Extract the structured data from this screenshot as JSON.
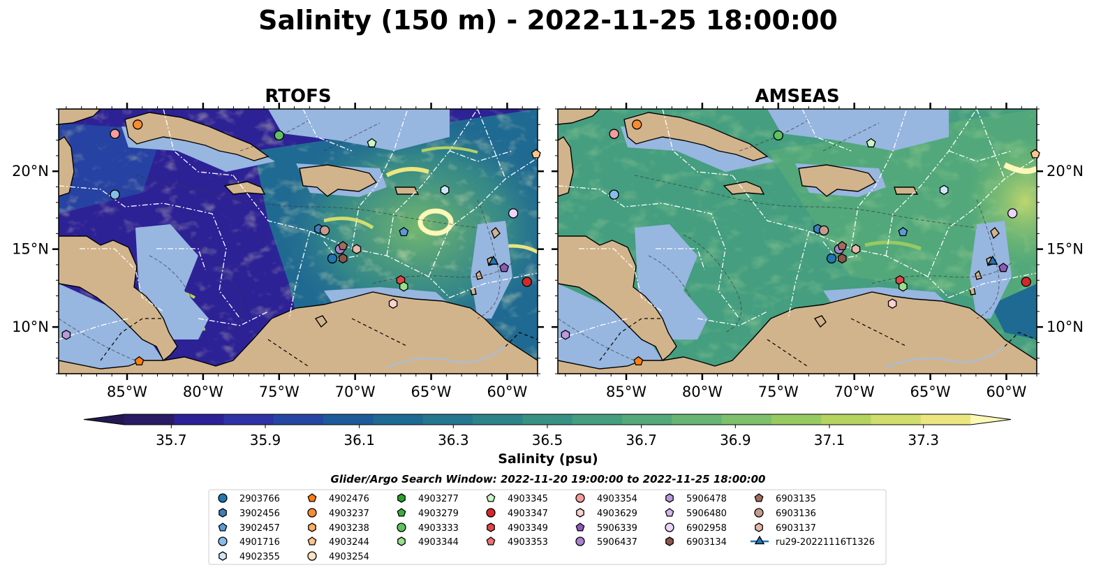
{
  "figure": {
    "title": "Salinity (150 m) - 2022-11-25 18:00:00"
  },
  "panels": [
    {
      "title": "RTOFS",
      "model": "rtofs"
    },
    {
      "title": "AMSEAS",
      "model": "amseas"
    }
  ],
  "axes": {
    "lon_range": [
      -89.5,
      -58.0
    ],
    "lat_range": [
      7.0,
      24.0
    ],
    "lon_ticks": [
      -85,
      -80,
      -75,
      -70,
      -65,
      -60
    ],
    "lon_tick_labels": [
      "85°W",
      "80°W",
      "75°W",
      "70°W",
      "65°W",
      "60°W"
    ],
    "lat_ticks": [
      10,
      15,
      20
    ],
    "lat_tick_labels": [
      "10°N",
      "15°N",
      "20°N"
    ]
  },
  "colorbar": {
    "label": "Salinity (psu)",
    "vmin": 35.6,
    "vmax": 37.4,
    "step": 0.1,
    "ticks": [
      35.7,
      35.9,
      36.1,
      36.3,
      36.5,
      36.7,
      36.9,
      37.1,
      37.3
    ],
    "tick_labels": [
      "35.7",
      "35.9",
      "36.1",
      "36.3",
      "36.5",
      "36.7",
      "36.9",
      "37.1",
      "37.3"
    ],
    "colors": [
      "#2a1b64",
      "#2d2196",
      "#2f33a6",
      "#2646a3",
      "#1d5a9a",
      "#1f6a92",
      "#24778e",
      "#2c8489",
      "#389183",
      "#449e7f",
      "#54a97a",
      "#67b474",
      "#7ec06b",
      "#98ca62",
      "#b4d35f",
      "#d1dd6c",
      "#ebe67f"
    ],
    "extend_under": "#241850",
    "extend_over": "#fdf7b8"
  },
  "map_colors": {
    "land": "#d2b48c",
    "shallow": "#97b6e0",
    "river": "#a3bfe0"
  },
  "legend": {
    "title": "Glider/Argo Search Window: 2022-11-20 19:00:00 to 2022-11-25 18:00:00",
    "columns": [
      [
        {
          "label": "2903766",
          "marker": "circle",
          "color": "#1f77b4"
        },
        {
          "label": "3902456",
          "marker": "hexagon",
          "color": "#3d7fbd"
        },
        {
          "label": "3902457",
          "marker": "pentagon",
          "color": "#5b9bd5"
        },
        {
          "label": "4901716",
          "marker": "circle",
          "color": "#87bde8"
        },
        {
          "label": "4902355",
          "marker": "hexagon",
          "color": "#cfe6f8"
        }
      ],
      [
        {
          "label": "4902476",
          "marker": "pentagon",
          "color": "#ff7f0e"
        },
        {
          "label": "4903237",
          "marker": "circle",
          "color": "#f88c33"
        },
        {
          "label": "4903238",
          "marker": "hexagon",
          "color": "#fcae62"
        },
        {
          "label": "4903244",
          "marker": "pentagon",
          "color": "#fdc58d"
        },
        {
          "label": "4903254",
          "marker": "circle",
          "color": "#fde3c5"
        }
      ],
      [
        {
          "label": "4903277",
          "marker": "hexagon",
          "color": "#2ca02c"
        },
        {
          "label": "4903279",
          "marker": "pentagon",
          "color": "#3dab3d"
        },
        {
          "label": "4903333",
          "marker": "circle",
          "color": "#5fc25f"
        },
        {
          "label": "4903344",
          "marker": "hexagon",
          "color": "#98df8a"
        }
      ],
      [
        {
          "label": "4903345",
          "marker": "pentagon",
          "color": "#ccf5c4"
        },
        {
          "label": "4903347",
          "marker": "circle",
          "color": "#d62728"
        },
        {
          "label": "4903349",
          "marker": "hexagon",
          "color": "#e04848"
        },
        {
          "label": "4903353",
          "marker": "pentagon",
          "color": "#ee7070"
        }
      ],
      [
        {
          "label": "4903354",
          "marker": "circle",
          "color": "#f59b9b"
        },
        {
          "label": "4903629",
          "marker": "hexagon",
          "color": "#fcd0d0"
        },
        {
          "label": "5906339",
          "marker": "pentagon",
          "color": "#8e5ab8"
        },
        {
          "label": "5906437",
          "marker": "circle",
          "color": "#a783cc"
        }
      ],
      [
        {
          "label": "5906478",
          "marker": "hexagon",
          "color": "#bc98dc"
        },
        {
          "label": "5906480",
          "marker": "pentagon",
          "color": "#d2b6ea"
        },
        {
          "label": "6902958",
          "marker": "circle",
          "color": "#ecd5f7"
        },
        {
          "label": "6903134",
          "marker": "hexagon",
          "color": "#8c564b"
        }
      ],
      [
        {
          "label": "6903135",
          "marker": "pentagon",
          "color": "#a16c5f"
        },
        {
          "label": "6903136",
          "marker": "circle",
          "color": "#c49c8e"
        },
        {
          "label": "6903137",
          "marker": "hexagon",
          "color": "#e6b8a8"
        },
        {
          "label": "ru29-20221116T1326",
          "marker": "glider",
          "color": "#1f77b4"
        }
      ]
    ]
  },
  "stations": [
    {
      "label": "4903237",
      "lon": -84.3,
      "lat": 23.0,
      "marker": "circle",
      "color": "#f88c33"
    },
    {
      "label": "4903354",
      "lon": -85.8,
      "lat": 22.4,
      "marker": "circle",
      "color": "#f59b9b"
    },
    {
      "label": "4903333",
      "lon": -75.0,
      "lat": 22.3,
      "marker": "circle",
      "color": "#5fc25f"
    },
    {
      "label": "4903345",
      "lon": -68.9,
      "lat": 21.8,
      "marker": "pentagon",
      "color": "#ccf5c4"
    },
    {
      "label": "4903244",
      "lon": -58.1,
      "lat": 21.1,
      "marker": "pentagon",
      "color": "#fdc58d"
    },
    {
      "label": "4901716",
      "lon": -85.8,
      "lat": 18.5,
      "marker": "circle",
      "color": "#87bde8"
    },
    {
      "label": "4902355",
      "lon": -64.1,
      "lat": 18.8,
      "marker": "hexagon",
      "color": "#cfe6f8"
    },
    {
      "label": "6902958",
      "lon": -59.6,
      "lat": 17.3,
      "marker": "circle",
      "color": "#ecd5f7"
    },
    {
      "label": "3902456",
      "lon": -72.4,
      "lat": 16.3,
      "marker": "hexagon",
      "color": "#3d7fbd"
    },
    {
      "label": "6903136",
      "lon": -72.0,
      "lat": 16.2,
      "marker": "circle",
      "color": "#c49c8e"
    },
    {
      "label": "3902457",
      "lon": -66.8,
      "lat": 16.1,
      "marker": "pentagon",
      "color": "#5b9bd5"
    },
    {
      "label": "5906437",
      "lon": -71.0,
      "lat": 15.0,
      "marker": "circle",
      "color": "#a783cc"
    },
    {
      "label": "6903135",
      "lon": -70.8,
      "lat": 15.2,
      "marker": "pentagon",
      "color": "#a16c5f"
    },
    {
      "label": "6903137",
      "lon": -69.9,
      "lat": 15.0,
      "marker": "hexagon",
      "color": "#e6b8a8"
    },
    {
      "label": "2903766",
      "lon": -71.5,
      "lat": 14.4,
      "marker": "circle",
      "color": "#1f77b4"
    },
    {
      "label": "6903134",
      "lon": -70.8,
      "lat": 14.4,
      "marker": "hexagon",
      "color": "#8c564b"
    },
    {
      "label": "ru29-20221116T1326",
      "lon": -60.9,
      "lat": 14.2,
      "marker": "glider",
      "color": "#1f77b4"
    },
    {
      "label": "5906339",
      "lon": -60.2,
      "lat": 13.8,
      "marker": "pentagon",
      "color": "#8e5ab8"
    },
    {
      "label": "4903349",
      "lon": -67.0,
      "lat": 13.0,
      "marker": "hexagon",
      "color": "#e04848"
    },
    {
      "label": "4903344",
      "lon": -66.8,
      "lat": 12.6,
      "marker": "hexagon",
      "color": "#98df8a"
    },
    {
      "label": "4903347",
      "lon": -58.7,
      "lat": 12.9,
      "marker": "circle",
      "color": "#d62728"
    },
    {
      "label": "4903629",
      "lon": -67.5,
      "lat": 11.5,
      "marker": "hexagon",
      "color": "#fcd0d0"
    },
    {
      "label": "5906478",
      "lon": -89.0,
      "lat": 9.5,
      "marker": "hexagon",
      "color": "#bc98dc"
    },
    {
      "label": "4902476",
      "lon": -84.2,
      "lat": 7.8,
      "marker": "pentagon",
      "color": "#ff7f0e"
    }
  ]
}
